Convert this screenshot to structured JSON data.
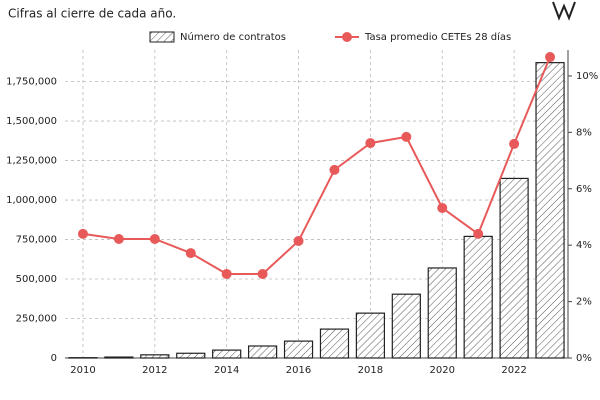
{
  "chart_data": {
    "type": "bar-line",
    "subtitle": "Cifras al cierre de cada año.",
    "categories": [
      "2010",
      null,
      "2012",
      null,
      "2014",
      null,
      "2016",
      null,
      "2018",
      null,
      "2020",
      null,
      "2022",
      null
    ],
    "series": [
      {
        "name": "Número de contratos",
        "type": "bar",
        "color": "#222222",
        "values": [
          2000,
          6000,
          20000,
          30000,
          50000,
          76000,
          107000,
          183000,
          284000,
          404000,
          570000,
          770000,
          1137000,
          1870000
        ]
      },
      {
        "name": "Tasa promedio CETEs 28 días",
        "type": "line",
        "axis": "y2",
        "color": "#e85a5a",
        "values": [
          4.4,
          4.22,
          4.22,
          3.72,
          2.98,
          2.98,
          4.15,
          6.67,
          7.62,
          7.84,
          5.32,
          4.4,
          7.59,
          10.67
        ]
      }
    ],
    "ylim": [
      0,
      1950000
    ],
    "yticks": [
      0,
      {
        "value": 250000,
        "label": "250,000"
      },
      {
        "value": 500000,
        "label": "500,000"
      },
      {
        "value": 750000,
        "label": "750,000"
      },
      {
        "value": 1000000,
        "label": "1,000,000"
      },
      {
        "value": 1250000,
        "label": "1,250,000"
      },
      {
        "value": 1500000,
        "label": "1,500,000"
      },
      {
        "value": 1750000,
        "label": "1,750,000"
      }
    ],
    "y2lim": [
      0,
      10.92
    ],
    "y2ticks": [
      {
        "value": 0,
        "label": "0%"
      },
      {
        "value": 2,
        "label": "2%"
      },
      {
        "value": 4,
        "label": "4%"
      },
      {
        "value": 6,
        "label": "6%"
      },
      {
        "value": 8,
        "label": "8%"
      },
      {
        "value": 10,
        "label": "10%"
      }
    ],
    "grid": true
  }
}
